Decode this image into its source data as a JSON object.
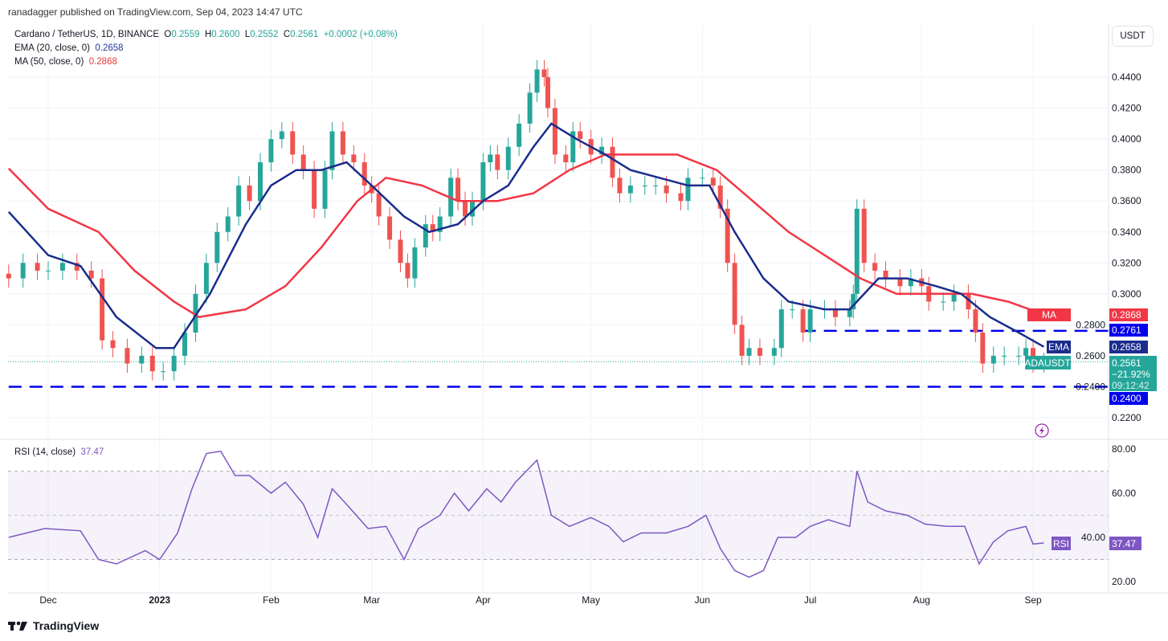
{
  "header": {
    "published": "ranadagger published on TradingView.com, Sep 04, 2023 14:47 UTC"
  },
  "legend": {
    "symbol": "Cardano / TetherUS, 1D, BINANCE",
    "open_label": "O",
    "open": "0.2559",
    "high_label": "H",
    "high": "0.2600",
    "low_label": "L",
    "low": "0.2552",
    "close_label": "C",
    "close": "0.2561",
    "change": "+0.0002 (+0.08%)",
    "ema_label": "EMA (20, close, 0)",
    "ema_value": "0.2658",
    "ma_label": "MA (50, close, 0)",
    "ma_value": "0.2868",
    "rsi_label": "RSI (14, close)",
    "rsi_value": "37.47"
  },
  "currency_button": "USDT",
  "footer": {
    "brand": "TradingView"
  },
  "badges": {
    "ma_tag": "MA",
    "ma_val": "0.2868",
    "res_val": "0.2761",
    "ema_tag": "EMA",
    "ema_val": "0.2658",
    "sym_tag": "ADAUSDT",
    "price": "0.2561",
    "pct": "−21.92%",
    "countdown": "09:12:42",
    "sup_val": "0.2400",
    "rsi_tag": "RSI",
    "rsi_val": "37.47"
  },
  "colors": {
    "up": "#26a69a",
    "down": "#ef5350",
    "ema": "#1a2c8c",
    "ma": "#f23645",
    "levels": "#0000ee",
    "rsi": "#7e57c2"
  },
  "chart_data": {
    "type": "candlestick",
    "price_axis": {
      "ticks": [
        "0.2200",
        "0.2400",
        "0.2600",
        "0.2800",
        "0.3000",
        "0.3200",
        "0.3400",
        "0.3600",
        "0.3800",
        "0.4000",
        "0.4200",
        "0.4400"
      ],
      "range": [
        0.21,
        0.465
      ]
    },
    "x_ticks": [
      [
        "2022-12-01",
        "Dec"
      ],
      [
        "2023-01-01",
        "2023"
      ],
      [
        "2023-02-01",
        "Feb"
      ],
      [
        "2023-03-01",
        "Mar"
      ],
      [
        "2023-04-01",
        "Apr"
      ],
      [
        "2023-05-01",
        "May"
      ],
      [
        "2023-06-01",
        "Jun"
      ],
      [
        "2023-07-01",
        "Jul"
      ],
      [
        "2023-08-01",
        "Aug"
      ],
      [
        "2023-09-01",
        "Sep"
      ]
    ],
    "levels": [
      {
        "value": 0.2761,
        "from": "2023-06-29"
      },
      {
        "value": 0.24,
        "from": "2022-11-20"
      }
    ],
    "close": [
      [
        "2022-11-20",
        0.31
      ],
      [
        "2022-11-24",
        0.32
      ],
      [
        "2022-11-28",
        0.315
      ],
      [
        "2022-12-01",
        0.315
      ],
      [
        "2022-12-05",
        0.32
      ],
      [
        "2022-12-09",
        0.315
      ],
      [
        "2022-12-13",
        0.31
      ],
      [
        "2022-12-16",
        0.27
      ],
      [
        "2022-12-19",
        0.265
      ],
      [
        "2022-12-23",
        0.255
      ],
      [
        "2022-12-27",
        0.26
      ],
      [
        "2022-12-30",
        0.25
      ],
      [
        "2023-01-02",
        0.25
      ],
      [
        "2023-01-05",
        0.26
      ],
      [
        "2023-01-08",
        0.275
      ],
      [
        "2023-01-11",
        0.3
      ],
      [
        "2023-01-14",
        0.32
      ],
      [
        "2023-01-17",
        0.34
      ],
      [
        "2023-01-20",
        0.35
      ],
      [
        "2023-01-23",
        0.37
      ],
      [
        "2023-01-26",
        0.36
      ],
      [
        "2023-01-29",
        0.385
      ],
      [
        "2023-02-01",
        0.4
      ],
      [
        "2023-02-04",
        0.405
      ],
      [
        "2023-02-07",
        0.39
      ],
      [
        "2023-02-10",
        0.38
      ],
      [
        "2023-02-13",
        0.355
      ],
      [
        "2023-02-16",
        0.38
      ],
      [
        "2023-02-18",
        0.405
      ],
      [
        "2023-02-21",
        0.39
      ],
      [
        "2023-02-24",
        0.385
      ],
      [
        "2023-02-27",
        0.37
      ],
      [
        "2023-03-01",
        0.365
      ],
      [
        "2023-03-03",
        0.35
      ],
      [
        "2023-03-06",
        0.335
      ],
      [
        "2023-03-09",
        0.32
      ],
      [
        "2023-03-11",
        0.31
      ],
      [
        "2023-03-13",
        0.33
      ],
      [
        "2023-03-16",
        0.345
      ],
      [
        "2023-03-18",
        0.34
      ],
      [
        "2023-03-20",
        0.35
      ],
      [
        "2023-03-23",
        0.375
      ],
      [
        "2023-03-25",
        0.36
      ],
      [
        "2023-03-27",
        0.35
      ],
      [
        "2023-03-29",
        0.36
      ],
      [
        "2023-04-01",
        0.385
      ],
      [
        "2023-04-03",
        0.39
      ],
      [
        "2023-04-05",
        0.38
      ],
      [
        "2023-04-08",
        0.395
      ],
      [
        "2023-04-11",
        0.41
      ],
      [
        "2023-04-14",
        0.43
      ],
      [
        "2023-04-16",
        0.445
      ],
      [
        "2023-04-18",
        0.44
      ],
      [
        "2023-04-19",
        0.42
      ],
      [
        "2023-04-21",
        0.39
      ],
      [
        "2023-04-24",
        0.385
      ],
      [
        "2023-04-26",
        0.405
      ],
      [
        "2023-04-28",
        0.4
      ],
      [
        "2023-05-01",
        0.39
      ],
      [
        "2023-05-04",
        0.395
      ],
      [
        "2023-05-07",
        0.375
      ],
      [
        "2023-05-09",
        0.365
      ],
      [
        "2023-05-12",
        0.37
      ],
      [
        "2023-05-16",
        0.37
      ],
      [
        "2023-05-19",
        0.37
      ],
      [
        "2023-05-22",
        0.365
      ],
      [
        "2023-05-26",
        0.36
      ],
      [
        "2023-05-28",
        0.375
      ],
      [
        "2023-06-01",
        0.375
      ],
      [
        "2023-06-04",
        0.37
      ],
      [
        "2023-06-06",
        0.355
      ],
      [
        "2023-06-08",
        0.32
      ],
      [
        "2023-06-10",
        0.28
      ],
      [
        "2023-06-12",
        0.26
      ],
      [
        "2023-06-14",
        0.265
      ],
      [
        "2023-06-17",
        0.26
      ],
      [
        "2023-06-21",
        0.265
      ],
      [
        "2023-06-23",
        0.29
      ],
      [
        "2023-06-26",
        0.29
      ],
      [
        "2023-06-29",
        0.275
      ],
      [
        "2023-07-01",
        0.29
      ],
      [
        "2023-07-05",
        0.29
      ],
      [
        "2023-07-08",
        0.285
      ],
      [
        "2023-07-12",
        0.29
      ],
      [
        "2023-07-13",
        0.3
      ],
      [
        "2023-07-14",
        0.355
      ],
      [
        "2023-07-16",
        0.32
      ],
      [
        "2023-07-19",
        0.315
      ],
      [
        "2023-07-22",
        0.31
      ],
      [
        "2023-07-26",
        0.305
      ],
      [
        "2023-07-29",
        0.31
      ],
      [
        "2023-08-01",
        0.305
      ],
      [
        "2023-08-03",
        0.295
      ],
      [
        "2023-08-07",
        0.295
      ],
      [
        "2023-08-10",
        0.3
      ],
      [
        "2023-08-14",
        0.29
      ],
      [
        "2023-08-16",
        0.275
      ],
      [
        "2023-08-18",
        0.255
      ],
      [
        "2023-08-21",
        0.26
      ],
      [
        "2023-08-24",
        0.26
      ],
      [
        "2023-08-28",
        0.26
      ],
      [
        "2023-08-30",
        0.265
      ],
      [
        "2023-09-01",
        0.255
      ],
      [
        "2023-09-04",
        0.2561
      ]
    ],
    "ema20": [
      [
        "2022-11-20",
        0.353
      ],
      [
        "2022-12-01",
        0.325
      ],
      [
        "2022-12-10",
        0.318
      ],
      [
        "2022-12-20",
        0.285
      ],
      [
        "2022-12-31",
        0.265
      ],
      [
        "2023-01-05",
        0.265
      ],
      [
        "2023-01-15",
        0.3
      ],
      [
        "2023-01-25",
        0.345
      ],
      [
        "2023-02-01",
        0.37
      ],
      [
        "2023-02-08",
        0.38
      ],
      [
        "2023-02-15",
        0.38
      ],
      [
        "2023-02-22",
        0.385
      ],
      [
        "2023-03-01",
        0.37
      ],
      [
        "2023-03-10",
        0.35
      ],
      [
        "2023-03-17",
        0.34
      ],
      [
        "2023-03-25",
        0.345
      ],
      [
        "2023-04-01",
        0.36
      ],
      [
        "2023-04-08",
        0.37
      ],
      [
        "2023-04-15",
        0.395
      ],
      [
        "2023-04-20",
        0.41
      ],
      [
        "2023-04-27",
        0.4
      ],
      [
        "2023-05-05",
        0.39
      ],
      [
        "2023-05-12",
        0.38
      ],
      [
        "2023-05-20",
        0.375
      ],
      [
        "2023-05-28",
        0.37
      ],
      [
        "2023-06-03",
        0.37
      ],
      [
        "2023-06-10",
        0.34
      ],
      [
        "2023-06-18",
        0.31
      ],
      [
        "2023-06-25",
        0.295
      ],
      [
        "2023-07-05",
        0.29
      ],
      [
        "2023-07-12",
        0.29
      ],
      [
        "2023-07-20",
        0.31
      ],
      [
        "2023-07-28",
        0.31
      ],
      [
        "2023-08-05",
        0.305
      ],
      [
        "2023-08-12",
        0.3
      ],
      [
        "2023-08-20",
        0.285
      ],
      [
        "2023-08-28",
        0.275
      ],
      [
        "2023-09-04",
        0.2658
      ]
    ],
    "ma50": [
      [
        "2022-11-20",
        0.381
      ],
      [
        "2022-12-01",
        0.355
      ],
      [
        "2022-12-15",
        0.34
      ],
      [
        "2022-12-25",
        0.315
      ],
      [
        "2023-01-05",
        0.295
      ],
      [
        "2023-01-12",
        0.285
      ],
      [
        "2023-01-25",
        0.29
      ],
      [
        "2023-02-05",
        0.305
      ],
      [
        "2023-02-15",
        0.33
      ],
      [
        "2023-02-25",
        0.36
      ],
      [
        "2023-03-05",
        0.375
      ],
      [
        "2023-03-15",
        0.37
      ],
      [
        "2023-03-25",
        0.36
      ],
      [
        "2023-04-05",
        0.36
      ],
      [
        "2023-04-15",
        0.365
      ],
      [
        "2023-04-25",
        0.38
      ],
      [
        "2023-05-05",
        0.39
      ],
      [
        "2023-05-15",
        0.39
      ],
      [
        "2023-05-25",
        0.39
      ],
      [
        "2023-06-05",
        0.38
      ],
      [
        "2023-06-15",
        0.36
      ],
      [
        "2023-06-25",
        0.34
      ],
      [
        "2023-07-05",
        0.325
      ],
      [
        "2023-07-15",
        0.31
      ],
      [
        "2023-07-25",
        0.3
      ],
      [
        "2023-08-05",
        0.3
      ],
      [
        "2023-08-15",
        0.3
      ],
      [
        "2023-08-25",
        0.295
      ],
      [
        "2023-09-04",
        0.2868
      ]
    ],
    "rsi": {
      "ticks": [
        "20.00",
        "40.00",
        "60.00",
        "80.00"
      ],
      "bands": [
        30,
        70
      ],
      "values": [
        [
          "2022-11-20",
          40
        ],
        [
          "2022-11-30",
          44
        ],
        [
          "2022-12-10",
          43
        ],
        [
          "2022-12-15",
          30
        ],
        [
          "2022-12-20",
          28
        ],
        [
          "2022-12-28",
          34
        ],
        [
          "2023-01-01",
          30
        ],
        [
          "2023-01-06",
          42
        ],
        [
          "2023-01-10",
          62
        ],
        [
          "2023-01-14",
          78
        ],
        [
          "2023-01-18",
          79
        ],
        [
          "2023-01-22",
          68
        ],
        [
          "2023-01-26",
          68
        ],
        [
          "2023-02-01",
          60
        ],
        [
          "2023-02-05",
          65
        ],
        [
          "2023-02-10",
          55
        ],
        [
          "2023-02-14",
          40
        ],
        [
          "2023-02-18",
          62
        ],
        [
          "2023-02-22",
          55
        ],
        [
          "2023-02-28",
          44
        ],
        [
          "2023-03-05",
          45
        ],
        [
          "2023-03-10",
          30
        ],
        [
          "2023-03-14",
          44
        ],
        [
          "2023-03-20",
          50
        ],
        [
          "2023-03-24",
          60
        ],
        [
          "2023-03-28",
          52
        ],
        [
          "2023-04-02",
          62
        ],
        [
          "2023-04-06",
          56
        ],
        [
          "2023-04-10",
          65
        ],
        [
          "2023-04-16",
          75
        ],
        [
          "2023-04-20",
          50
        ],
        [
          "2023-04-25",
          45
        ],
        [
          "2023-05-01",
          49
        ],
        [
          "2023-05-06",
          45
        ],
        [
          "2023-05-10",
          38
        ],
        [
          "2023-05-15",
          42
        ],
        [
          "2023-05-22",
          42
        ],
        [
          "2023-05-28",
          45
        ],
        [
          "2023-06-02",
          50
        ],
        [
          "2023-06-06",
          35
        ],
        [
          "2023-06-10",
          25
        ],
        [
          "2023-06-14",
          22
        ],
        [
          "2023-06-18",
          25
        ],
        [
          "2023-06-22",
          40
        ],
        [
          "2023-06-27",
          40
        ],
        [
          "2023-07-01",
          45
        ],
        [
          "2023-07-06",
          48
        ],
        [
          "2023-07-12",
          45
        ],
        [
          "2023-07-14",
          70
        ],
        [
          "2023-07-17",
          56
        ],
        [
          "2023-07-22",
          52
        ],
        [
          "2023-07-28",
          50
        ],
        [
          "2023-08-02",
          46
        ],
        [
          "2023-08-08",
          45
        ],
        [
          "2023-08-13",
          45
        ],
        [
          "2023-08-17",
          28
        ],
        [
          "2023-08-21",
          38
        ],
        [
          "2023-08-25",
          43
        ],
        [
          "2023-08-30",
          45
        ],
        [
          "2023-09-01",
          37
        ],
        [
          "2023-09-04",
          37.47
        ]
      ]
    }
  }
}
